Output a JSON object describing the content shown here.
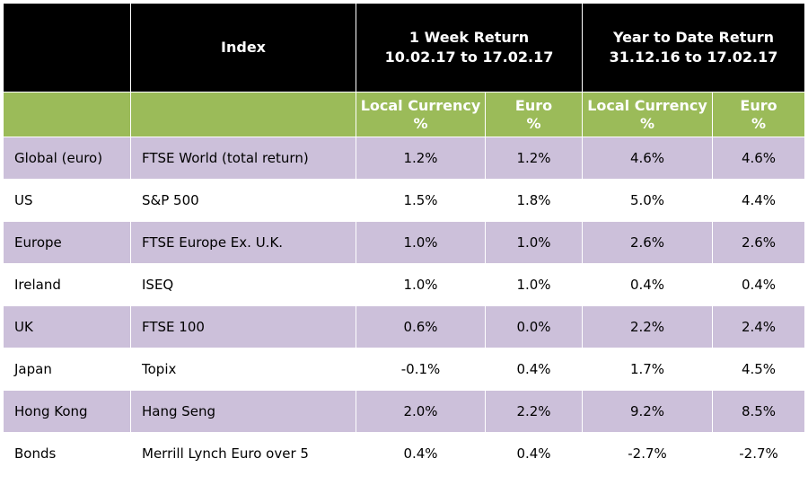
{
  "header": {
    "index_label": "Index",
    "week_title": "1 Week Return",
    "week_dates": "10.02.17 to 17.02.17",
    "ytd_title": "Year to Date Return",
    "ytd_dates": "31.12.16 to 17.02.17"
  },
  "subheader": {
    "local_label": "Local Currency",
    "euro_label": "Euro",
    "pct": "%"
  },
  "rows": [
    {
      "region": "Global (euro)",
      "index": "FTSE World (total return)",
      "week_local": "1.2%",
      "week_euro": "1.2%",
      "ytd_local": "4.6%",
      "ytd_euro": "4.6%"
    },
    {
      "region": "US",
      "index": "S&P 500",
      "week_local": "1.5%",
      "week_euro": "1.8%",
      "ytd_local": "5.0%",
      "ytd_euro": "4.4%"
    },
    {
      "region": "Europe",
      "index": "FTSE Europe Ex. U.K.",
      "week_local": "1.0%",
      "week_euro": "1.0%",
      "ytd_local": "2.6%",
      "ytd_euro": "2.6%"
    },
    {
      "region": "Ireland",
      "index": "ISEQ",
      "week_local": "1.0%",
      "week_euro": "1.0%",
      "ytd_local": "0.4%",
      "ytd_euro": "0.4%"
    },
    {
      "region": "UK",
      "index": "FTSE 100",
      "week_local": "0.6%",
      "week_euro": "0.0%",
      "ytd_local": "2.2%",
      "ytd_euro": "2.4%"
    },
    {
      "region": "Japan",
      "index": "Topix",
      "week_local": "-0.1%",
      "week_euro": "0.4%",
      "ytd_local": "1.7%",
      "ytd_euro": "4.5%"
    },
    {
      "region": "Hong Kong",
      "index": "Hang Seng",
      "week_local": "2.0%",
      "week_euro": "2.2%",
      "ytd_local": "9.2%",
      "ytd_euro": "8.5%"
    },
    {
      "region": "Bonds",
      "index": "Merrill Lynch Euro over 5",
      "week_local": "0.4%",
      "week_euro": "0.4%",
      "ytd_local": "-2.7%",
      "ytd_euro": "-2.7%"
    }
  ],
  "colors": {
    "header_bg": "#000000",
    "subheader_bg": "#9bbb59",
    "row_alt_bg": "#ccc0da",
    "row_bg": "#ffffff"
  }
}
